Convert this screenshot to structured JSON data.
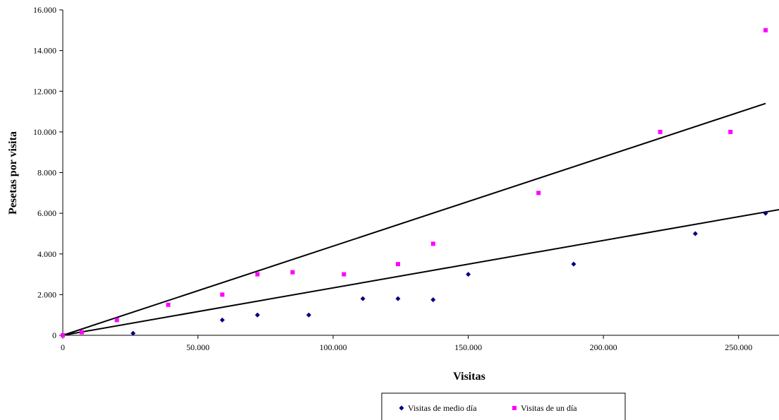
{
  "chart_data": {
    "type": "scatter",
    "title": "",
    "xlabel": "Visitas",
    "ylabel": "Pesetas por visita",
    "xlim": [
      0,
      260000
    ],
    "ylim": [
      0,
      16000
    ],
    "x_ticks": [
      {
        "value": 0,
        "label": "0"
      },
      {
        "value": 50000,
        "label": "50.000"
      },
      {
        "value": 100000,
        "label": "100.000"
      },
      {
        "value": 150000,
        "label": "150.000"
      },
      {
        "value": 200000,
        "label": "200.000"
      },
      {
        "value": 250000,
        "label": "250.000"
      }
    ],
    "y_ticks": [
      {
        "value": 0,
        "label": "0"
      },
      {
        "value": 2000,
        "label": "2.000"
      },
      {
        "value": 4000,
        "label": "4.000"
      },
      {
        "value": 6000,
        "label": "6.000"
      },
      {
        "value": 8000,
        "label": "8.000"
      },
      {
        "value": 10000,
        "label": "10.000"
      },
      {
        "value": 12000,
        "label": "12.000"
      },
      {
        "value": 14000,
        "label": "14.000"
      },
      {
        "value": 16000,
        "label": "16.000"
      }
    ],
    "grid": false,
    "legend_position": "bottom",
    "series": [
      {
        "name": "Visitas de medio día",
        "marker": "diamond",
        "color": "#000080",
        "points": [
          {
            "x": 0,
            "y": 0
          },
          {
            "x": 26000,
            "y": 100
          },
          {
            "x": 59000,
            "y": 750
          },
          {
            "x": 72000,
            "y": 1000
          },
          {
            "x": 91000,
            "y": 1000
          },
          {
            "x": 111000,
            "y": 1800
          },
          {
            "x": 124000,
            "y": 1800
          },
          {
            "x": 137000,
            "y": 1750
          },
          {
            "x": 150000,
            "y": 3000
          },
          {
            "x": 189000,
            "y": 3500
          },
          {
            "x": 234000,
            "y": 5000
          },
          {
            "x": 260000,
            "y": 6000
          }
        ],
        "trendline": {
          "start": [
            0,
            0
          ],
          "end": [
            268000,
            6250
          ],
          "color": "#000000"
        }
      },
      {
        "name": "Visitas de un día",
        "marker": "square",
        "color": "#FF00FF",
        "points": [
          {
            "x": 0,
            "y": 0
          },
          {
            "x": 7000,
            "y": 150
          },
          {
            "x": 20000,
            "y": 750
          },
          {
            "x": 39000,
            "y": 1500
          },
          {
            "x": 59000,
            "y": 2000
          },
          {
            "x": 72000,
            "y": 3000
          },
          {
            "x": 85000,
            "y": 3100
          },
          {
            "x": 104000,
            "y": 3000
          },
          {
            "x": 124000,
            "y": 3500
          },
          {
            "x": 137000,
            "y": 4500
          },
          {
            "x": 176000,
            "y": 7000
          },
          {
            "x": 221000,
            "y": 10000
          },
          {
            "x": 247000,
            "y": 10000
          },
          {
            "x": 260000,
            "y": 15000
          }
        ],
        "trendline": {
          "start": [
            0,
            0
          ],
          "end": [
            260000,
            11400
          ],
          "color": "#000000"
        }
      }
    ]
  }
}
